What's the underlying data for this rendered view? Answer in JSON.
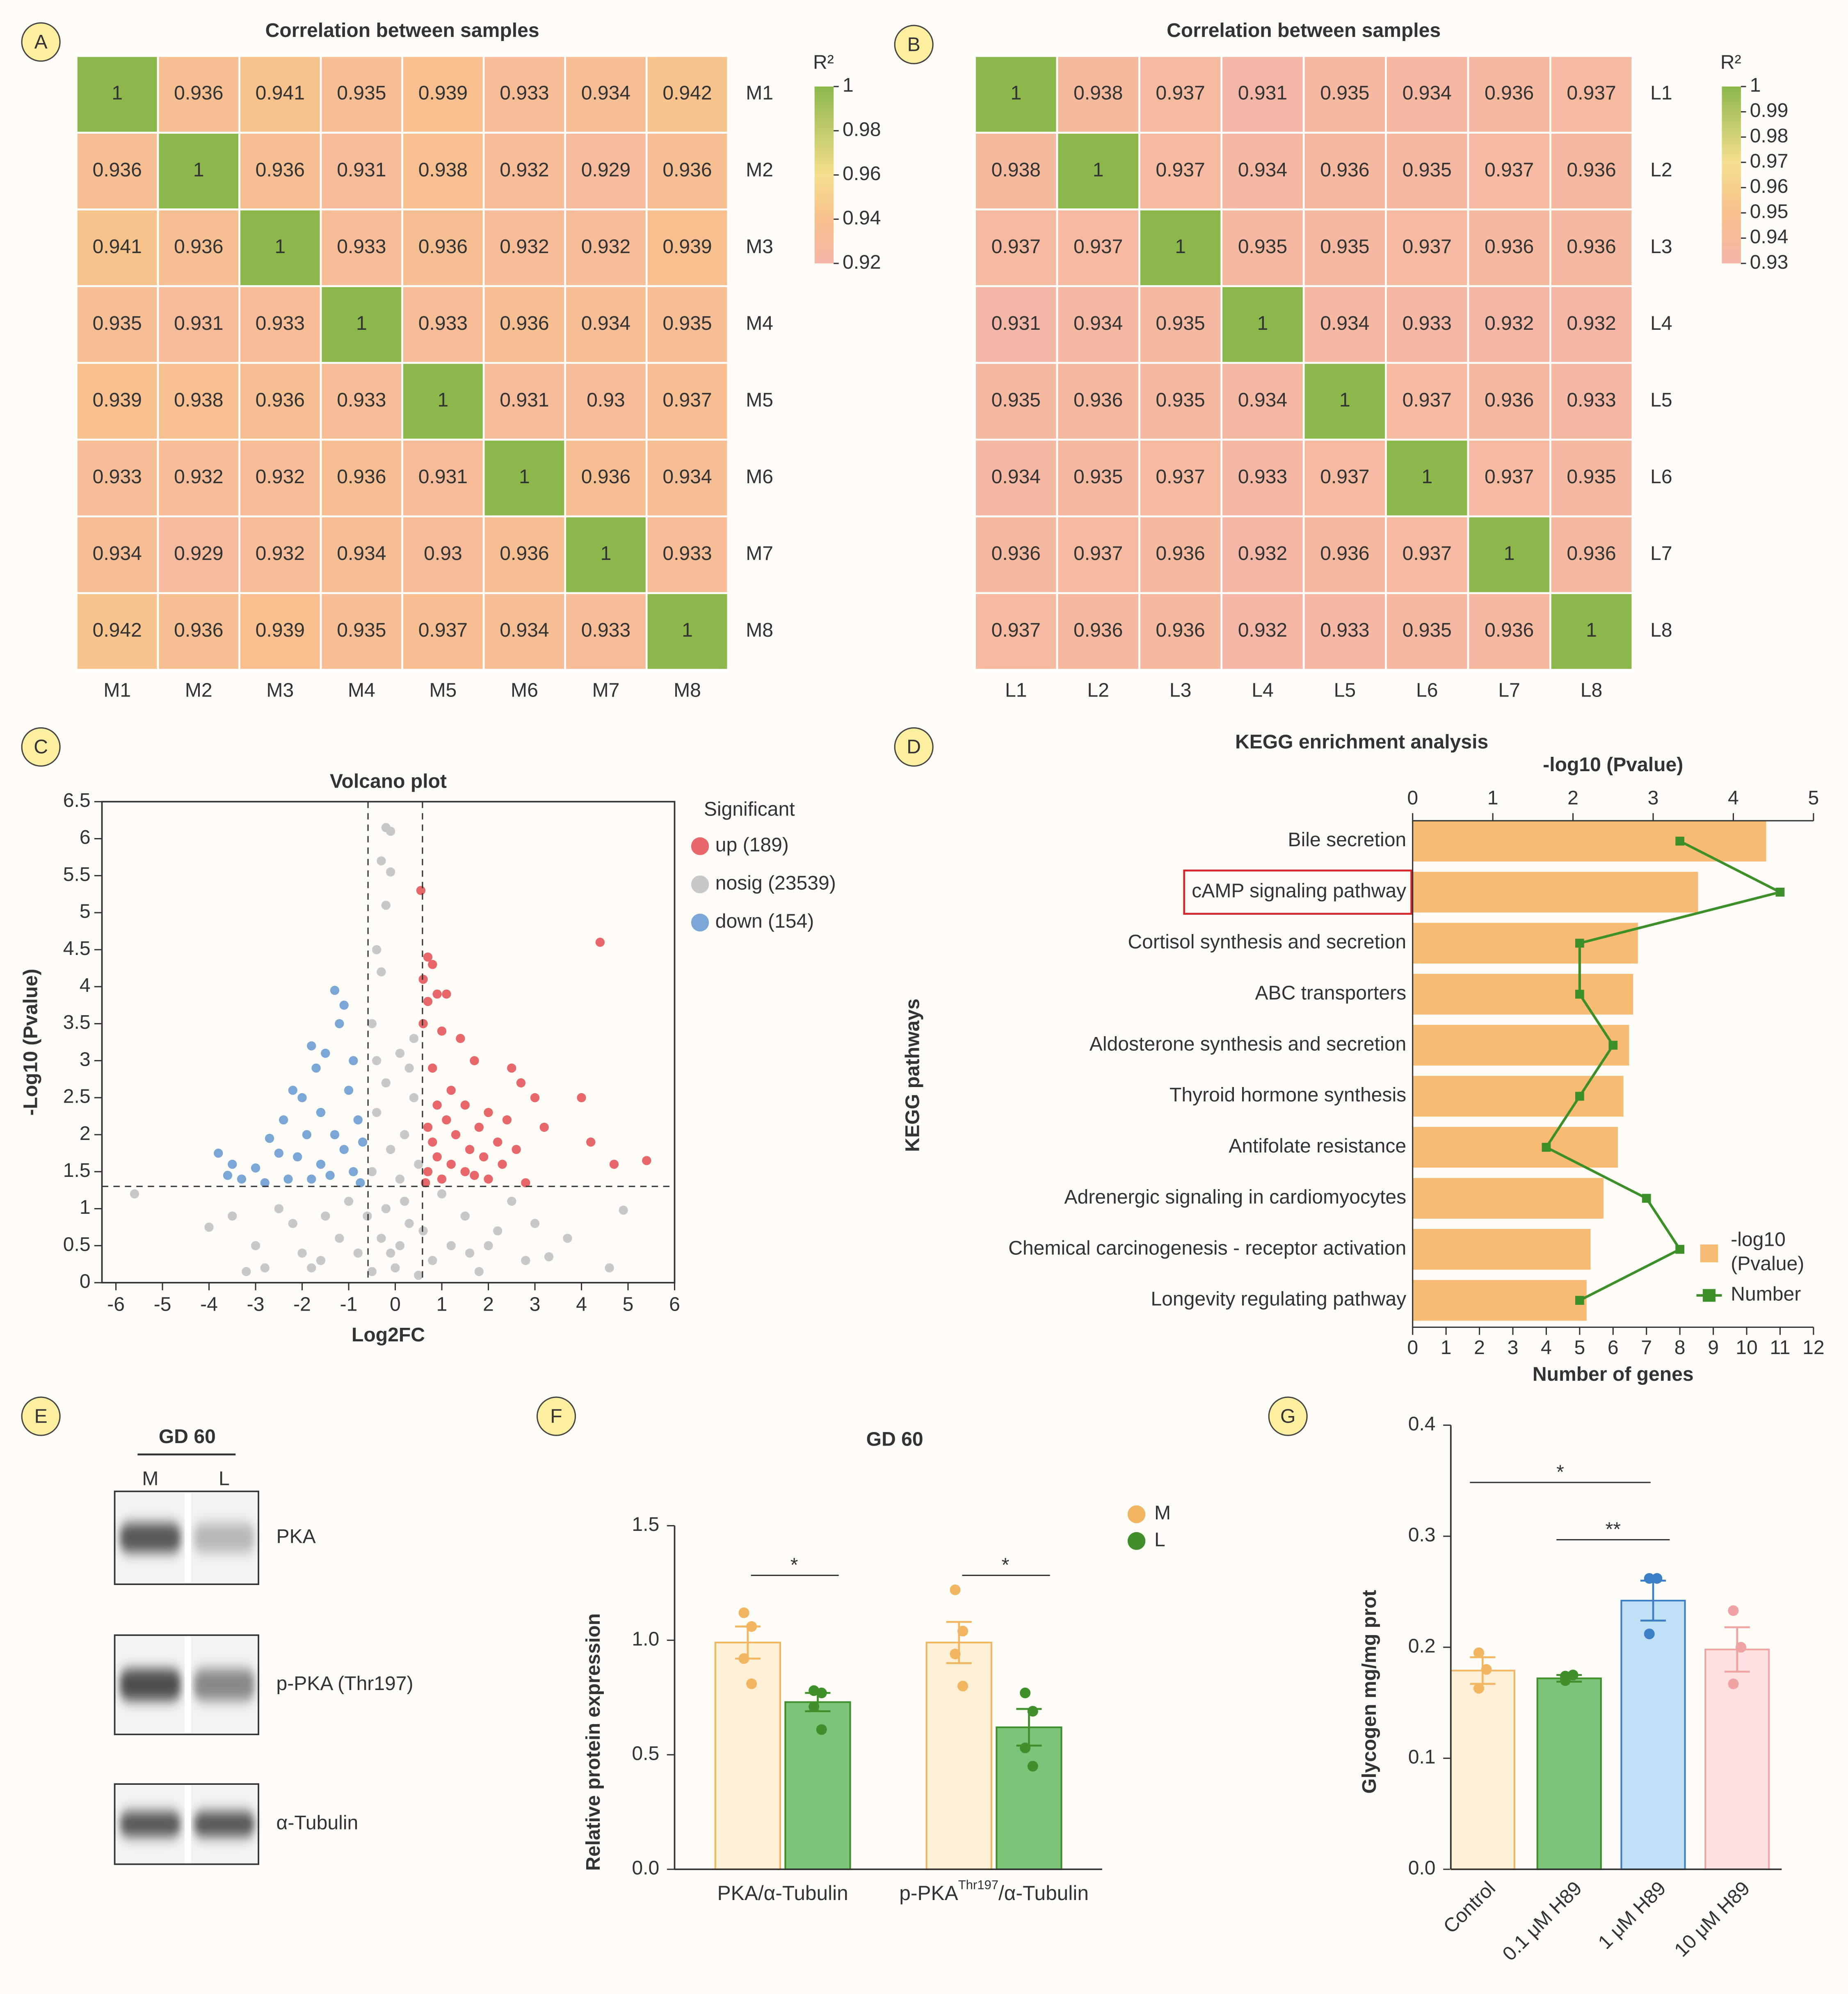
{
  "chart_data": [
    {
      "type": "heatmap",
      "panel": "A",
      "title": "Correlation between samples",
      "colorbar_label": "R²",
      "rows": [
        "M1",
        "M2",
        "M3",
        "M4",
        "M5",
        "M6",
        "M7",
        "M8"
      ],
      "columns": [
        "M1",
        "M2",
        "M3",
        "M4",
        "M5",
        "M6",
        "M7",
        "M8"
      ],
      "values": [
        [
          1,
          0.936,
          0.941,
          0.935,
          0.939,
          0.933,
          0.934,
          0.942
        ],
        [
          0.936,
          1,
          0.936,
          0.931,
          0.938,
          0.932,
          0.929,
          0.936
        ],
        [
          0.941,
          0.936,
          1,
          0.933,
          0.936,
          0.932,
          0.932,
          0.939
        ],
        [
          0.935,
          0.931,
          0.933,
          1,
          0.933,
          0.936,
          0.934,
          0.935
        ],
        [
          0.939,
          0.938,
          0.936,
          0.933,
          1,
          0.931,
          0.93,
          0.937
        ],
        [
          0.933,
          0.932,
          0.932,
          0.936,
          0.931,
          1,
          0.936,
          0.934
        ],
        [
          0.934,
          0.929,
          0.932,
          0.934,
          0.93,
          0.936,
          1,
          0.933
        ],
        [
          0.942,
          0.936,
          0.939,
          0.935,
          0.937,
          0.934,
          0.933,
          1
        ]
      ],
      "clim": [
        0.92,
        1
      ],
      "colorbar_ticks": [
        0.92,
        0.94,
        0.96,
        0.98,
        1
      ],
      "colorscale": [
        [
          0.92,
          "#f4b6a8"
        ],
        [
          0.94,
          "#f7c18d"
        ],
        [
          0.96,
          "#f6df8e"
        ],
        [
          1,
          "#8cb84b"
        ]
      ]
    },
    {
      "type": "heatmap",
      "panel": "B",
      "title": "Correlation between samples",
      "colorbar_label": "R²",
      "rows": [
        "L1",
        "L2",
        "L3",
        "L4",
        "L5",
        "L6",
        "L7",
        "L8"
      ],
      "columns": [
        "L1",
        "L2",
        "L3",
        "L4",
        "L5",
        "L6",
        "L7",
        "L8"
      ],
      "values": [
        [
          1,
          0.938,
          0.937,
          0.931,
          0.935,
          0.934,
          0.936,
          0.937
        ],
        [
          0.938,
          1,
          0.937,
          0.934,
          0.936,
          0.935,
          0.937,
          0.936
        ],
        [
          0.937,
          0.937,
          1,
          0.935,
          0.935,
          0.937,
          0.936,
          0.936
        ],
        [
          0.931,
          0.934,
          0.935,
          1,
          0.934,
          0.933,
          0.932,
          0.932
        ],
        [
          0.935,
          0.936,
          0.935,
          0.934,
          1,
          0.937,
          0.936,
          0.933
        ],
        [
          0.934,
          0.935,
          0.937,
          0.933,
          0.937,
          1,
          0.937,
          0.935
        ],
        [
          0.936,
          0.937,
          0.936,
          0.932,
          0.936,
          0.937,
          1,
          0.936
        ],
        [
          0.937,
          0.936,
          0.936,
          0.932,
          0.933,
          0.935,
          0.936,
          1
        ]
      ],
      "clim": [
        0.93,
        1
      ],
      "colorbar_ticks": [
        0.93,
        0.94,
        0.95,
        0.96,
        0.97,
        0.98,
        0.99,
        1
      ],
      "colorscale": [
        [
          0.93,
          "#f4b6a8"
        ],
        [
          0.95,
          "#f7c18d"
        ],
        [
          0.97,
          "#f6df8e"
        ],
        [
          1,
          "#8cb84b"
        ]
      ]
    },
    {
      "type": "scatter",
      "panel": "C",
      "title": "Volcano plot",
      "x_label": "Log2FC",
      "y_label": "-Log10 (Pvalue)",
      "legend_title": "Significant",
      "xlim": [
        -6.3,
        6
      ],
      "xticks": [
        -6,
        -5,
        -4,
        -3,
        -2,
        -1,
        0,
        1,
        2,
        3,
        4,
        5,
        6
      ],
      "ylim": [
        0,
        6.5
      ],
      "yticks": [
        0,
        0.5,
        1,
        1.5,
        2,
        2.5,
        3,
        3.5,
        4,
        4.5,
        5,
        5.5,
        6,
        6.5
      ],
      "x_threshold": [
        -0.585,
        0.585
      ],
      "y_threshold": 1.301,
      "series": [
        {
          "name": "up (189)",
          "color": "#e8676a",
          "x": [
            0.55,
            0.7,
            0.8,
            0.6,
            0.9,
            1.1,
            0.7,
            0.6,
            1.0,
            1.4,
            1.7,
            2.5,
            0.8,
            1.2,
            2.7,
            3.0,
            4.4,
            4.0,
            0.9,
            1.5,
            2.0,
            2.4,
            1.1,
            0.7,
            1.8,
            3.2,
            1.3,
            2.2,
            0.8,
            1.6,
            2.6,
            0.9,
            1.9,
            4.2,
            1.2,
            2.3,
            0.7,
            1.5,
            4.7,
            5.4,
            2.0,
            1.0,
            2.8,
            0.65,
            1.7
          ],
          "values": [
            5.3,
            4.4,
            4.3,
            4.1,
            3.9,
            3.9,
            3.8,
            3.5,
            3.4,
            3.3,
            3.0,
            2.9,
            2.9,
            2.6,
            2.7,
            2.5,
            4.6,
            2.5,
            2.4,
            2.4,
            2.3,
            2.2,
            2.2,
            2.1,
            2.1,
            2.1,
            2.0,
            1.9,
            1.9,
            1.8,
            1.8,
            1.7,
            1.7,
            1.9,
            1.6,
            1.6,
            1.5,
            1.5,
            1.6,
            1.65,
            1.4,
            1.4,
            1.35,
            1.35,
            1.45
          ]
        },
        {
          "name": "nosig (23539)",
          "color": "#c8c8c8",
          "x": [
            -0.2,
            -0.1,
            -0.3,
            -0.1,
            -0.2,
            -0.4,
            -0.3,
            -0.5,
            0.1,
            0.3,
            -0.2,
            0.4,
            -0.4,
            0.2,
            -0.1,
            0.5,
            -0.5,
            0.1,
            -5.6,
            -4.0,
            -3.5,
            4.9,
            4.6,
            3.7,
            -3.0,
            -2.5,
            2.5,
            3.0,
            -2.0,
            2.0,
            1.5,
            -1.5,
            1.0,
            -1.0,
            0.8,
            -0.8,
            0.3,
            -0.3,
            0.0,
            0.5,
            -0.5,
            1.2,
            -1.2,
            2.8,
            -2.8,
            3.3,
            -3.2,
            1.8,
            -1.8,
            0.2,
            -0.2,
            0.1,
            -0.1,
            0.4,
            -0.4,
            0.6,
            -0.6,
            1.6,
            -1.6,
            2.2,
            -2.2
          ],
          "values": [
            6.15,
            6.1,
            5.7,
            5.55,
            5.1,
            4.5,
            4.2,
            3.5,
            3.1,
            2.9,
            2.7,
            2.5,
            2.3,
            2.0,
            1.8,
            1.6,
            1.5,
            1.4,
            1.2,
            0.75,
            0.9,
            0.98,
            0.2,
            0.6,
            0.5,
            1.0,
            1.1,
            0.8,
            0.4,
            0.5,
            0.9,
            0.9,
            1.2,
            1.1,
            0.3,
            0.4,
            0.8,
            0.6,
            0.2,
            0.1,
            0.15,
            0.5,
            0.6,
            0.3,
            0.2,
            0.35,
            0.15,
            0.15,
            0.2,
            1.1,
            1.0,
            0.5,
            0.4,
            3.3,
            3.0,
            0.7,
            0.9,
            0.4,
            0.3,
            0.7,
            0.8
          ]
        },
        {
          "name": "down (154)",
          "color": "#7ba7d6",
          "x": [
            -1.3,
            -1.1,
            -1.2,
            -1.8,
            -1.5,
            -1.7,
            -0.9,
            -2.2,
            -2.0,
            -1.0,
            -1.6,
            -2.4,
            -0.8,
            -1.9,
            -2.7,
            -1.3,
            -2.5,
            -0.7,
            -1.1,
            -2.1,
            -1.6,
            -3.0,
            -3.5,
            -3.8,
            -0.9,
            -2.3,
            -1.4,
            -3.3,
            -0.75,
            -2.8,
            -3.6,
            -1.8
          ],
          "values": [
            3.95,
            3.75,
            3.5,
            3.2,
            3.1,
            2.9,
            3.0,
            2.6,
            2.5,
            2.6,
            2.3,
            2.2,
            2.2,
            2.0,
            1.95,
            2.0,
            1.75,
            1.9,
            1.8,
            1.7,
            1.6,
            1.55,
            1.6,
            1.75,
            1.5,
            1.4,
            1.45,
            1.4,
            1.35,
            1.35,
            1.45,
            1.4
          ]
        }
      ]
    },
    {
      "type": "combo",
      "panel": "D",
      "title": "KEGG enrichment analysis",
      "y_label": "KEGG pathways",
      "categories": [
        "Bile secretion",
        "cAMP signaling pathway",
        "Cortisol synthesis and secretion",
        "ABC transporters",
        "Aldosterone synthesis and secretion",
        "Thyroid hormone synthesis",
        "Antifolate resistance",
        "Adrenergic signaling in cardiomyocytes",
        "Chemical carcinogenesis - receptor activation",
        "Longevity regulating pathway"
      ],
      "highlight": 1,
      "x_label": "-log10 (Pvalue)",
      "xlim": [
        0,
        5
      ],
      "xticks": [
        0,
        1,
        2,
        3,
        4,
        5
      ],
      "x2_label": "Number of genes",
      "x2lim": [
        0,
        12
      ],
      "x2ticks": [
        0,
        1,
        2,
        3,
        4,
        5,
        6,
        7,
        8,
        9,
        10,
        11,
        12
      ],
      "legend": "lower right",
      "series": [
        {
          "name": "-log10 (Pvalue)",
          "kind": "bar",
          "color": "#f7bb74",
          "values": [
            4.41,
            3.56,
            2.81,
            2.75,
            2.7,
            2.63,
            2.56,
            2.38,
            2.22,
            2.17
          ]
        },
        {
          "name": "Number",
          "kind": "line",
          "axis": "x2",
          "color": "#3d8f2a",
          "values": [
            8,
            11,
            5,
            5,
            6,
            5,
            4,
            7,
            8,
            5
          ]
        }
      ]
    },
    {
      "type": "bar",
      "panel": "F",
      "title": "GD 60",
      "y_label": "Relative protein expression",
      "categories": [
        [
          {
            "text": "PKA/α-Tubulin"
          }
        ],
        [
          {
            "text": "p-PKA"
          },
          {
            "text": "Thr197",
            "sup": true
          },
          {
            "text": "/α-Tubulin"
          }
        ]
      ],
      "ylim": [
        0,
        1.5
      ],
      "yticks": [
        {
          "value": 0,
          "label": "0.0"
        },
        0.5,
        {
          "value": 1,
          "label": "1.0"
        },
        1.5
      ],
      "legend": "upper right",
      "series": [
        {
          "name": "M",
          "color": "#f2b560",
          "fill": "#fdf0d6",
          "values": [
            0.99,
            0.99
          ],
          "errors": [
            0.07,
            0.09
          ],
          "points": [
            [
              1.12,
              1.06,
              0.92,
              0.81
            ],
            [
              1.22,
              1.04,
              0.94,
              0.8
            ]
          ]
        },
        {
          "name": "L",
          "color": "#3f8f2b",
          "fill": "#7cc47a",
          "values": [
            0.73,
            0.62
          ],
          "errors": [
            0.04,
            0.08
          ],
          "points": [
            [
              0.78,
              0.77,
              0.71,
              0.61
            ],
            [
              0.77,
              0.69,
              0.53,
              0.45
            ]
          ]
        }
      ],
      "significance": [
        {
          "category": 0,
          "label": "*"
        },
        {
          "category": 1,
          "label": "*"
        }
      ]
    },
    {
      "type": "bar",
      "panel": "G",
      "y_label": "Glycogen mg/mg prot",
      "categories": [
        "Control",
        "0.1 μM H89",
        "1 μM H89",
        "10 μM H89"
      ],
      "values": [
        0.179,
        0.172,
        0.242,
        0.198
      ],
      "errors": [
        0.012,
        0.003,
        0.018,
        0.02
      ],
      "points": [
        [
          0.195,
          0.18,
          0.163
        ],
        [
          0.17,
          0.175,
          0.174
        ],
        [
          0.262,
          0.262,
          0.212
        ],
        [
          0.233,
          0.2,
          0.167
        ]
      ],
      "colors": [
        "#f2b560",
        "#3f8f2b",
        "#3d7fc4",
        "#f0a3a3"
      ],
      "fills": [
        "#fdf0d6",
        "#7cc47a",
        "#bfe0f5",
        "#fde0e0"
      ],
      "ylim": [
        0,
        0.4
      ],
      "yticks": [
        {
          "value": 0,
          "label": "0.0"
        },
        0.1,
        0.2,
        0.3,
        0.4
      ],
      "significance": [
        {
          "from": 0,
          "to": 2,
          "label": "*"
        },
        {
          "from": 1,
          "to": 2,
          "label": "**"
        }
      ]
    }
  ],
  "blot": {
    "panel": "E",
    "title": "GD 60",
    "lanes": [
      "M",
      "L"
    ],
    "bands": [
      "PKA",
      "p-PKA (Thr197)",
      "α-Tubulin"
    ]
  }
}
